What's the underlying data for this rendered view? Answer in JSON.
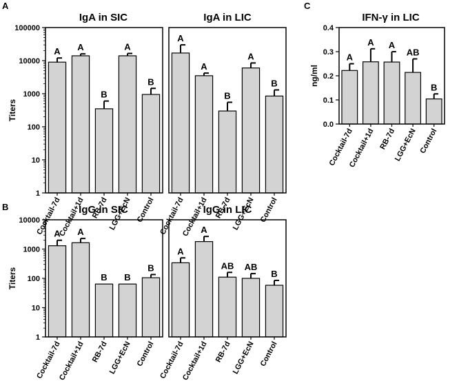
{
  "panels": {
    "A": "A",
    "B": "B",
    "C": "C"
  },
  "chart_data": [
    {
      "id": "iga-sic",
      "panel": "A",
      "type": "bar",
      "scale": "log",
      "title": "IgA in SIC",
      "ylabel": "Titers",
      "ylim": [
        1,
        100000
      ],
      "yticks": [
        "1",
        "10",
        "100",
        "1000",
        "10000",
        "100000"
      ],
      "categories": [
        "Cocktail-7d",
        "Cocktail+1d",
        "RB-7d",
        "LGG+EcN",
        "Control"
      ],
      "values": [
        9000,
        14000,
        350,
        14000,
        950
      ],
      "errors": [
        12000,
        16000,
        600,
        16500,
        1450
      ],
      "labels": [
        "A",
        "A",
        "B",
        "A",
        "B"
      ]
    },
    {
      "id": "iga-lic",
      "panel": "A",
      "type": "bar",
      "scale": "log",
      "title": "IgA in LIC",
      "ylabel": "",
      "ylim": [
        1,
        100000
      ],
      "categories": [
        "Cocktail-7d",
        "Cocktail+1d",
        "RB-7d",
        "LGG+EcN",
        "Control"
      ],
      "values": [
        17000,
        3500,
        300,
        6000,
        850
      ],
      "errors": [
        30000,
        4200,
        550,
        8500,
        1300
      ],
      "labels": [
        "A",
        "A",
        "B",
        "A",
        "B"
      ]
    },
    {
      "id": "ifn-lic",
      "panel": "C",
      "type": "bar",
      "scale": "linear",
      "title": "IFN-γ in LIC",
      "ylabel": "ng/ml",
      "ylim": [
        0,
        0.4
      ],
      "yticks": [
        "0.0",
        "0.1",
        "0.2",
        "0.3",
        "0.4"
      ],
      "categories": [
        "Cocktail-7d",
        "Cocktail+1d",
        "RB-7d",
        "LGG+EcN",
        "Control"
      ],
      "values": [
        0.222,
        0.258,
        0.257,
        0.214,
        0.104
      ],
      "errors": [
        0.25,
        0.312,
        0.3,
        0.27,
        0.125
      ],
      "labels": [
        "A",
        "A",
        "A",
        "AB",
        "B"
      ]
    },
    {
      "id": "igg-sic",
      "panel": "B",
      "type": "bar",
      "scale": "log",
      "title": "IgG in SIC",
      "ylabel": "Titers",
      "ylim": [
        1,
        10000
      ],
      "yticks": [
        "1",
        "10",
        "100",
        "1000",
        "10000"
      ],
      "categories": [
        "Cocktail-7d",
        "Cocktail+1d",
        "RB-7d",
        "LGG+EcN",
        "Control"
      ],
      "values": [
        1300,
        1650,
        64,
        64,
        105
      ],
      "errors": [
        2000,
        2300,
        64,
        64,
        135
      ],
      "labels": [
        "A",
        "A",
        "B",
        "B",
        "B"
      ]
    },
    {
      "id": "igg-lic",
      "panel": "B",
      "type": "bar",
      "scale": "log",
      "title": "IgG in LIC",
      "ylabel": "",
      "ylim": [
        1,
        10000
      ],
      "categories": [
        "Cocktail-7d",
        "Cocktail+1d",
        "RB-7d",
        "LGG+EcN",
        "Control"
      ],
      "values": [
        340,
        1800,
        110,
        100,
        58
      ],
      "errors": [
        500,
        2700,
        160,
        145,
        85
      ],
      "labels": [
        "A",
        "A",
        "AB",
        "AB",
        "B"
      ]
    }
  ]
}
